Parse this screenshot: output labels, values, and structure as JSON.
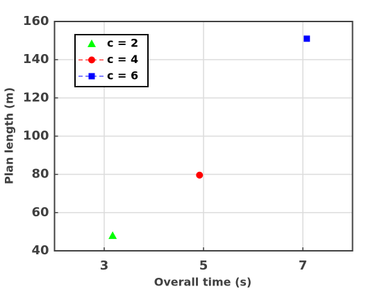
{
  "chart_data": {
    "type": "scatter",
    "x_label": "Overall time (s)",
    "y_label": "Plan length (m)",
    "series": [
      {
        "name": "c = 2",
        "color": "#00ff00",
        "marker": "triangle",
        "linestyle": "none",
        "x": [
          3.17
        ],
        "values": [
          48
        ]
      },
      {
        "name": "c = 4",
        "color": "#ff0000",
        "marker": "circle",
        "linestyle": "dashed",
        "x": [
          4.92
        ],
        "values": [
          79.6
        ]
      },
      {
        "name": "c = 6",
        "color": "#0000ff",
        "marker": "square",
        "linestyle": "dashed",
        "x": [
          7.08
        ],
        "values": [
          151
        ]
      }
    ],
    "xlim": [
      2,
      8
    ],
    "xticks": [
      3,
      5,
      7
    ],
    "ylim": [
      40,
      160
    ],
    "yticks": [
      40,
      60,
      80,
      100,
      120,
      140,
      160
    ],
    "grid": true,
    "legend": "upper left"
  }
}
